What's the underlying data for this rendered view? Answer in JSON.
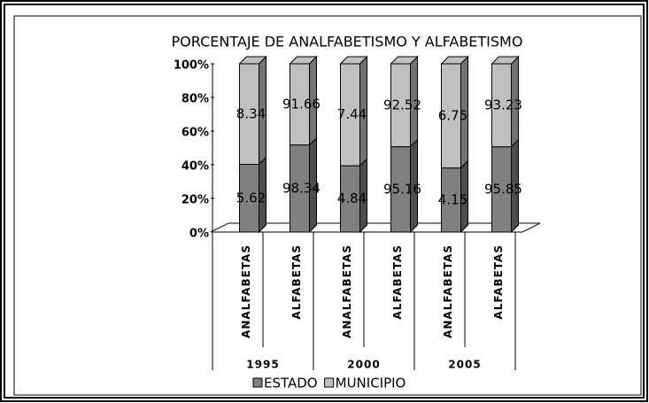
{
  "chart_data": {
    "type": "stacked_bar_100",
    "title": "PORCENTAJE DE ANALFABETISMO Y ALFABETISMO",
    "categories": [
      "ANALFABETAS",
      "ALFABETAS",
      "ANALFABETAS",
      "ALFABETAS",
      "ANALFABETAS",
      "ALFABETAS"
    ],
    "groups": [
      "1995",
      "2000",
      "2005"
    ],
    "series": [
      {
        "name": "ESTADO",
        "color": "#808080",
        "values": [
          5.62,
          98.34,
          4.84,
          95.16,
          4.15,
          95.85
        ]
      },
      {
        "name": "MUNICIPIO",
        "color": "#c0c0c0",
        "values": [
          8.34,
          91.66,
          7.44,
          92.52,
          6.75,
          93.23
        ]
      }
    ],
    "ylim": [
      0,
      100
    ],
    "yticks": [
      {
        "value": 0,
        "label": "0%"
      },
      {
        "value": 20,
        "label": "20%"
      },
      {
        "value": 40,
        "label": "40%"
      },
      {
        "value": 60,
        "label": "60%"
      },
      {
        "value": 80,
        "label": "80%"
      },
      {
        "value": 100,
        "label": "100%"
      }
    ],
    "legend": "bottom"
  }
}
